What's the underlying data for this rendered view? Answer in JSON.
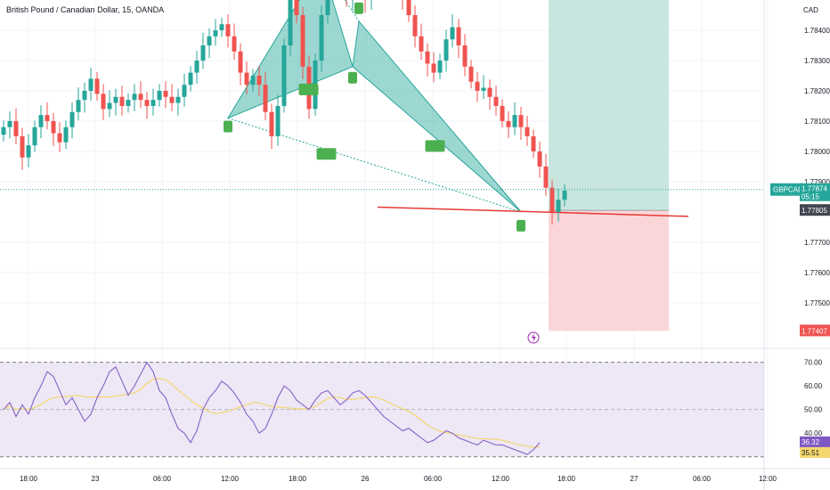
{
  "header": {
    "title": "British Pound / Canadian Dollar, 15, OANDA",
    "currency": "CAD"
  },
  "colors": {
    "up": "#26a69a",
    "down": "#ef5350",
    "pattern_fill": "#26a69a",
    "marker": "#4caf50",
    "profit_zone": "#c8e6df",
    "loss_zone": "#fbd6d8",
    "support_line": "#e53935",
    "rsi_line": "#7e57c2",
    "rsi_ma": "#f5d76e",
    "rsi_band": "#ede7f6"
  },
  "icons": {
    "alert": "lightning-icon"
  },
  "price_tag": {
    "symbol": "GBPCAD",
    "price": "1.77874",
    "countdown": "05:15"
  },
  "position_tags": {
    "entry": "1.77805",
    "stop": "1.77407"
  },
  "rsi_tags": {
    "rsi": "36.32",
    "ma": "35.51"
  },
  "chart_data": {
    "type": "candlestick",
    "price_axis": {
      "labels": [
        "1.78400",
        "1.78300",
        "1.78200",
        "1.78100",
        "1.78000",
        "1.77900",
        "1.77700",
        "1.77600",
        "1.77500"
      ],
      "values": [
        1.784,
        1.783,
        1.782,
        1.781,
        1.78,
        1.779,
        1.777,
        1.776,
        1.775
      ],
      "range": [
        1.7737,
        1.785
      ]
    },
    "time_axis": {
      "labels": [
        "18:00",
        "23",
        "06:00",
        "12:00",
        "18:00",
        "26",
        "06:00",
        "12:00",
        "18:00",
        "27",
        "06:00",
        "12:00"
      ]
    },
    "series": [
      {
        "name": "GBPCAD",
        "close": [
          1.7808,
          1.781,
          1.7805,
          1.7798,
          1.7802,
          1.7808,
          1.7812,
          1.781,
          1.7806,
          1.7803,
          1.7808,
          1.7813,
          1.7817,
          1.782,
          1.7824,
          1.7819,
          1.7814,
          1.7816,
          1.7818,
          1.7815,
          1.7817,
          1.7819,
          1.7817,
          1.7815,
          1.7817,
          1.782,
          1.7818,
          1.7816,
          1.7818,
          1.7822,
          1.7826,
          1.783,
          1.7835,
          1.7838,
          1.784,
          1.7842,
          1.7838,
          1.7833,
          1.7826,
          1.7822,
          1.7825,
          1.7822,
          1.7813,
          1.7805,
          1.7815,
          1.7835,
          1.785,
          1.7845,
          1.7828,
          1.7814,
          1.783,
          1.7845,
          1.7855,
          1.786,
          1.7855,
          1.785,
          1.7855,
          1.7855,
          1.785,
          1.7853,
          1.7857,
          1.786,
          1.7858,
          1.7855,
          1.785,
          1.7845,
          1.7838,
          1.7833,
          1.7829,
          1.7826,
          1.783,
          1.7837,
          1.7841,
          1.7835,
          1.7828,
          1.7823,
          1.782,
          1.7821,
          1.7818,
          1.7815,
          1.781,
          1.7808,
          1.7812,
          1.7808,
          1.7805,
          1.78,
          1.7795,
          1.7788,
          1.778,
          1.7784,
          1.7787
        ]
      }
    ],
    "harmonic_pattern": {
      "points": [
        {
          "t": 36,
          "price": 1.7811
        },
        {
          "t": 51,
          "price": 1.7862
        },
        {
          "t": 56,
          "price": 1.7828
        },
        {
          "t": 57,
          "price": 1.7843
        },
        {
          "t": 83,
          "price": 1.778
        }
      ]
    },
    "support_line": {
      "from": {
        "t": 48,
        "price": 1.7781
      },
      "to": {
        "t": 110,
        "price": 1.778
      }
    },
    "position": {
      "entry": 1.77805,
      "target": 1.785,
      "stop": 1.77407
    },
    "rsi": {
      "axis_labels": [
        "70.00",
        "60.00",
        "50.00",
        "40.00"
      ],
      "axis_values": [
        70,
        60,
        50,
        40
      ],
      "bands": [
        70,
        30
      ],
      "range": [
        28,
        74
      ],
      "values": [
        50,
        53,
        47,
        52,
        48,
        55,
        60,
        66,
        64,
        58,
        52,
        55,
        50,
        45,
        48,
        55,
        60,
        66,
        68,
        62,
        56,
        60,
        65,
        70,
        66,
        58,
        55,
        48,
        42,
        40,
        36,
        41,
        50,
        55,
        58,
        62,
        60,
        57,
        53,
        48,
        45,
        40,
        42,
        48,
        55,
        60,
        58,
        54,
        52,
        50,
        54,
        57,
        58,
        55,
        52,
        54,
        57,
        58,
        56,
        53,
        50,
        47,
        45,
        43,
        41,
        42,
        40,
        38,
        36,
        37,
        39,
        41,
        40,
        38,
        37,
        36,
        35,
        37,
        36,
        35,
        35,
        34,
        33,
        32,
        31,
        33,
        36
      ]
    }
  }
}
